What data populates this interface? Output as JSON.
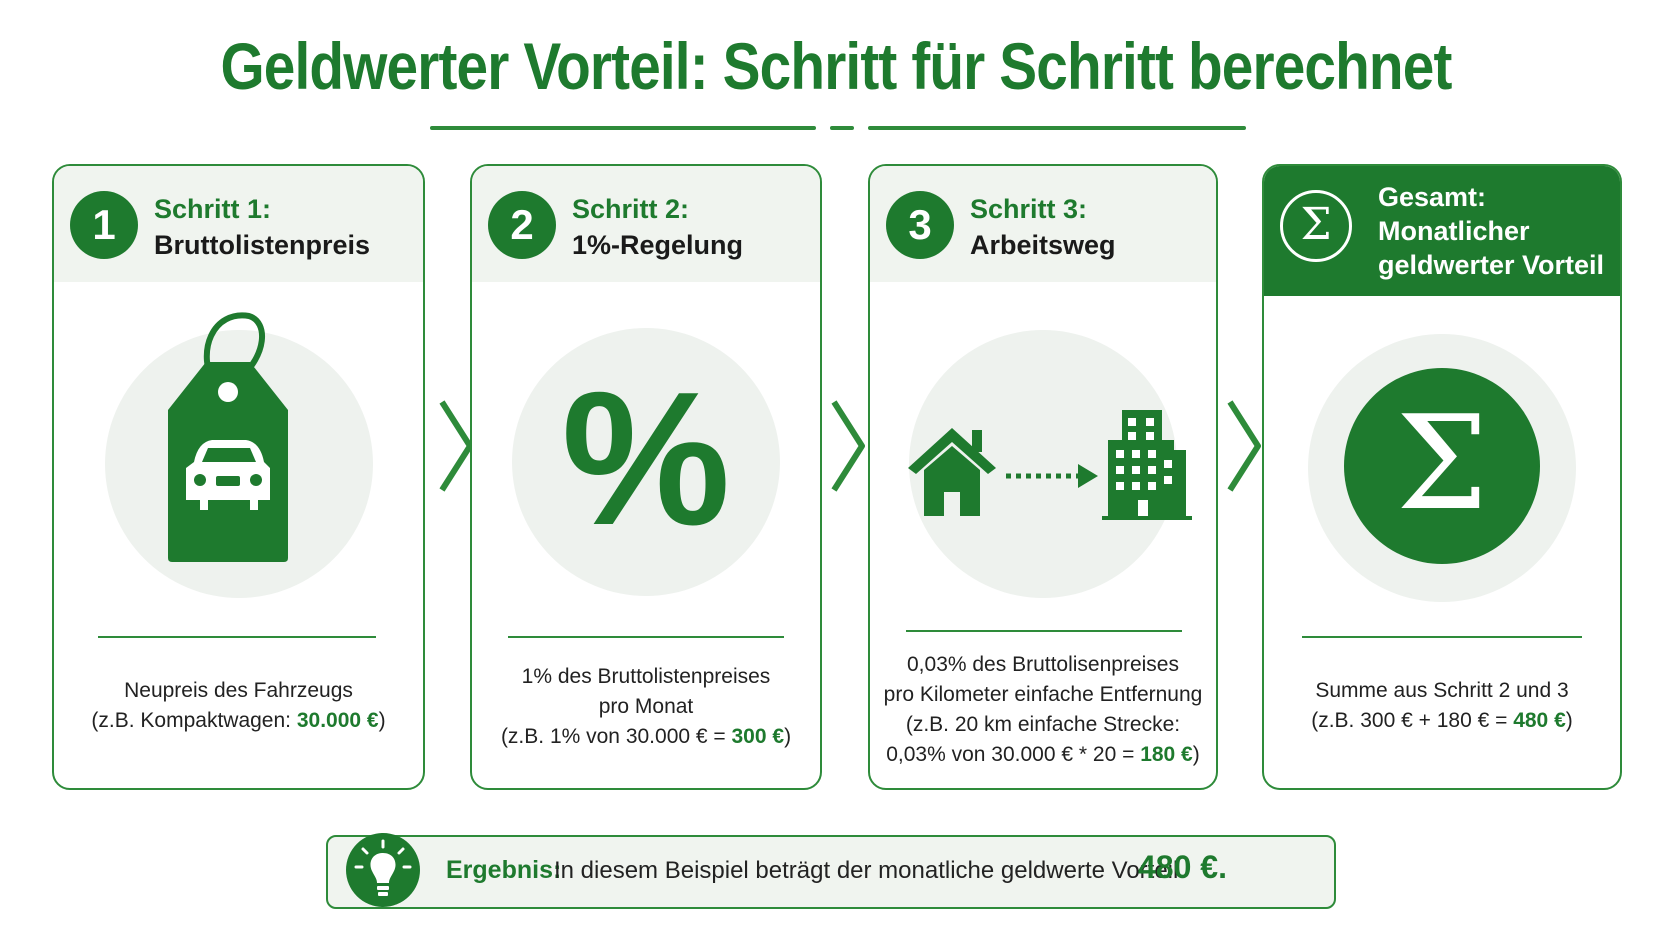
{
  "title": "Geldwerter Vorteil: Schritt für Schritt berechnet",
  "colors": {
    "primary": "#1e7a2e",
    "accent": "#2e8b3a",
    "tint": "#f0f4ef"
  },
  "steps": [
    {
      "number": "1",
      "label": "Schritt 1:",
      "title": "Bruttolistenpreis",
      "icon": "price-tag-car-icon",
      "desc_line1": "Neupreis des Fahrzeugs",
      "desc_line2_pre": "(z.B. Kompaktwagen: ",
      "desc_line2_value": "30.000 €",
      "desc_line2_post": ")"
    },
    {
      "number": "2",
      "label": "Schritt 2:",
      "title": "1%-Regelung",
      "icon": "percent-icon",
      "percent_symbol": "%",
      "desc_line1": "1% des Bruttolistenpreises",
      "desc_line2": "pro Monat",
      "desc_line3_pre": "(z.B. 1% von 30.000 € = ",
      "desc_line3_value": "300 €",
      "desc_line3_post": ")"
    },
    {
      "number": "3",
      "label": "Schritt 3:",
      "title": "Arbeitsweg",
      "icon": "home-to-office-icon",
      "desc_line1": "0,03% des Bruttolisenpreises",
      "desc_line2": "pro Kilometer einfache Entfernung",
      "desc_line3": "(z.B. 20 km einfache Strecke:",
      "desc_line4_pre": "0,03% von 30.000 € * 20 = ",
      "desc_line4_value": "180 €",
      "desc_line4_post": ")"
    }
  ],
  "total": {
    "label": "Gesamt:",
    "title_line1": "Monatlicher",
    "title_line2": "geldwerter Vorteil",
    "symbol": "Σ",
    "icon": "sigma-icon",
    "desc_line1": "Summe aus Schritt 2 und 3",
    "desc_line2_pre": "(z.B. 300 € + 180 € = ",
    "desc_line2_value": "480 €",
    "desc_line2_post": ")"
  },
  "result": {
    "icon": "lightbulb-icon",
    "label": "Ergebnis:",
    "text": "In diesem Beispiel beträgt der monatliche geldwerte Vorteil",
    "value": "480 €."
  }
}
